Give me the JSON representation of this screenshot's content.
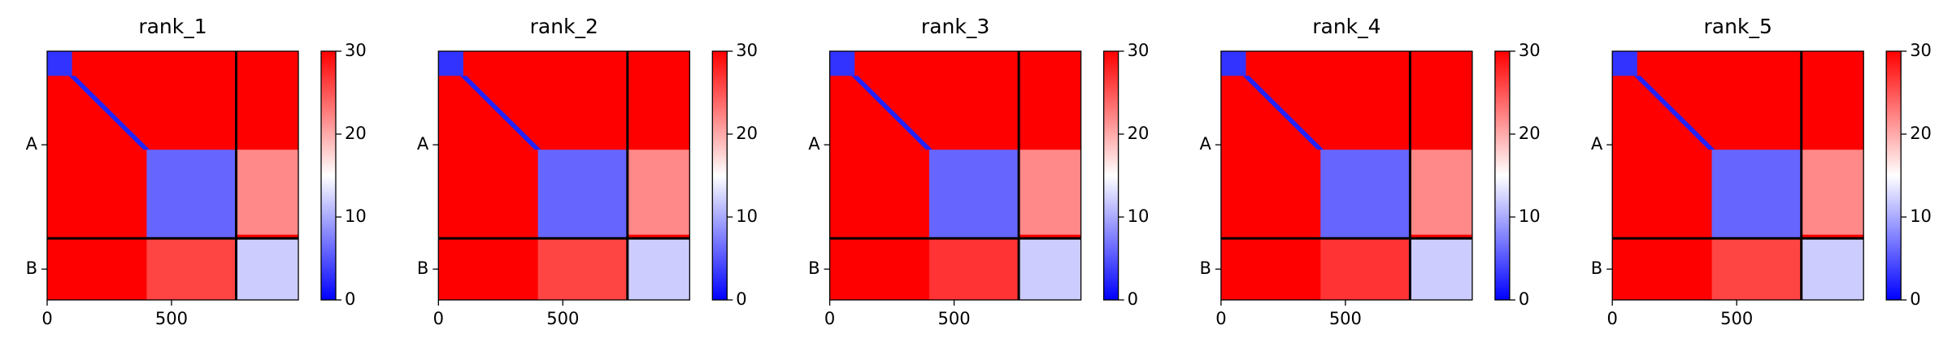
{
  "chart_data": [
    {
      "type": "heatmap",
      "title": "rank_1",
      "xlim": [
        0,
        1010
      ],
      "ylim": [
        1010,
        0
      ],
      "xticks": [
        0,
        500
      ],
      "yticks": [
        {
          "value": 380,
          "label": "A"
        },
        {
          "value": 885,
          "label": "B"
        }
      ],
      "chain_breaks": [
        760
      ],
      "colorbar": {
        "lim": [
          0,
          30
        ],
        "ticks": [
          0,
          10,
          20,
          30
        ],
        "colormap": "bwr"
      },
      "blocks": [
        {
          "x": [
            0,
            1010
          ],
          "y": [
            0,
            1010
          ],
          "value": 30
        },
        {
          "x": [
            0,
            100
          ],
          "y": [
            0,
            100
          ],
          "value": 3
        },
        {
          "x": [
            100,
            400
          ],
          "y": [
            100,
            400
          ],
          "value": 2,
          "shape": "diagonal"
        },
        {
          "x": [
            400,
            760
          ],
          "y": [
            400,
            760
          ],
          "value": 6
        },
        {
          "x": [
            760,
            1010
          ],
          "y": [
            400,
            745
          ],
          "value": 22
        },
        {
          "x": [
            400,
            760
          ],
          "y": [
            760,
            1010
          ],
          "value": 26
        },
        {
          "x": [
            760,
            1010
          ],
          "y": [
            760,
            1010
          ],
          "value": 12
        }
      ]
    },
    {
      "type": "heatmap",
      "title": "rank_2",
      "xlim": [
        0,
        1010
      ],
      "ylim": [
        1010,
        0
      ],
      "xticks": [
        0,
        500
      ],
      "yticks": [
        {
          "value": 380,
          "label": "A"
        },
        {
          "value": 885,
          "label": "B"
        }
      ],
      "chain_breaks": [
        760
      ],
      "colorbar": {
        "lim": [
          0,
          30
        ],
        "ticks": [
          0,
          10,
          20,
          30
        ],
        "colormap": "bwr"
      },
      "blocks": [
        {
          "x": [
            0,
            1010
          ],
          "y": [
            0,
            1010
          ],
          "value": 30
        },
        {
          "x": [
            0,
            100
          ],
          "y": [
            0,
            100
          ],
          "value": 3
        },
        {
          "x": [
            100,
            400
          ],
          "y": [
            100,
            400
          ],
          "value": 2,
          "shape": "diagonal"
        },
        {
          "x": [
            400,
            760
          ],
          "y": [
            400,
            760
          ],
          "value": 6
        },
        {
          "x": [
            760,
            1010
          ],
          "y": [
            400,
            745
          ],
          "value": 22
        },
        {
          "x": [
            400,
            760
          ],
          "y": [
            760,
            1010
          ],
          "value": 26
        },
        {
          "x": [
            760,
            1010
          ],
          "y": [
            760,
            1010
          ],
          "value": 12
        }
      ]
    },
    {
      "type": "heatmap",
      "title": "rank_3",
      "xlim": [
        0,
        1010
      ],
      "ylim": [
        1010,
        0
      ],
      "xticks": [
        0,
        500
      ],
      "yticks": [
        {
          "value": 380,
          "label": "A"
        },
        {
          "value": 885,
          "label": "B"
        }
      ],
      "chain_breaks": [
        760
      ],
      "colorbar": {
        "lim": [
          0,
          30
        ],
        "ticks": [
          0,
          10,
          20,
          30
        ],
        "colormap": "bwr"
      },
      "blocks": [
        {
          "x": [
            0,
            1010
          ],
          "y": [
            0,
            1010
          ],
          "value": 30
        },
        {
          "x": [
            0,
            100
          ],
          "y": [
            0,
            100
          ],
          "value": 3
        },
        {
          "x": [
            100,
            400
          ],
          "y": [
            100,
            400
          ],
          "value": 2,
          "shape": "diagonal"
        },
        {
          "x": [
            400,
            760
          ],
          "y": [
            400,
            760
          ],
          "value": 6
        },
        {
          "x": [
            760,
            1010
          ],
          "y": [
            400,
            745
          ],
          "value": 22
        },
        {
          "x": [
            400,
            760
          ],
          "y": [
            760,
            1010
          ],
          "value": 27
        },
        {
          "x": [
            760,
            1010
          ],
          "y": [
            760,
            1010
          ],
          "value": 12
        }
      ]
    },
    {
      "type": "heatmap",
      "title": "rank_4",
      "xlim": [
        0,
        1010
      ],
      "ylim": [
        1010,
        0
      ],
      "xticks": [
        0,
        500
      ],
      "yticks": [
        {
          "value": 380,
          "label": "A"
        },
        {
          "value": 885,
          "label": "B"
        }
      ],
      "chain_breaks": [
        760
      ],
      "colorbar": {
        "lim": [
          0,
          30
        ],
        "ticks": [
          0,
          10,
          20,
          30
        ],
        "colormap": "bwr"
      },
      "blocks": [
        {
          "x": [
            0,
            1010
          ],
          "y": [
            0,
            1010
          ],
          "value": 30
        },
        {
          "x": [
            0,
            100
          ],
          "y": [
            0,
            100
          ],
          "value": 3
        },
        {
          "x": [
            100,
            400
          ],
          "y": [
            100,
            400
          ],
          "value": 2,
          "shape": "diagonal"
        },
        {
          "x": [
            400,
            760
          ],
          "y": [
            400,
            760
          ],
          "value": 6
        },
        {
          "x": [
            760,
            1010
          ],
          "y": [
            400,
            745
          ],
          "value": 22
        },
        {
          "x": [
            400,
            760
          ],
          "y": [
            760,
            1010
          ],
          "value": 27
        },
        {
          "x": [
            760,
            1010
          ],
          "y": [
            760,
            1010
          ],
          "value": 12
        }
      ]
    },
    {
      "type": "heatmap",
      "title": "rank_5",
      "xlim": [
        0,
        1010
      ],
      "ylim": [
        1010,
        0
      ],
      "xticks": [
        0,
        500
      ],
      "yticks": [
        {
          "value": 380,
          "label": "A"
        },
        {
          "value": 885,
          "label": "B"
        }
      ],
      "chain_breaks": [
        760
      ],
      "colorbar": {
        "lim": [
          0,
          30
        ],
        "ticks": [
          0,
          10,
          20,
          30
        ],
        "colormap": "bwr"
      },
      "blocks": [
        {
          "x": [
            0,
            1010
          ],
          "y": [
            0,
            1010
          ],
          "value": 30
        },
        {
          "x": [
            0,
            100
          ],
          "y": [
            0,
            100
          ],
          "value": 3
        },
        {
          "x": [
            100,
            400
          ],
          "y": [
            100,
            400
          ],
          "value": 2,
          "shape": "diagonal"
        },
        {
          "x": [
            400,
            760
          ],
          "y": [
            400,
            760
          ],
          "value": 6
        },
        {
          "x": [
            760,
            1010
          ],
          "y": [
            400,
            745
          ],
          "value": 22
        },
        {
          "x": [
            400,
            760
          ],
          "y": [
            760,
            1010
          ],
          "value": 26
        },
        {
          "x": [
            760,
            1010
          ],
          "y": [
            760,
            1010
          ],
          "value": 12
        }
      ]
    }
  ]
}
